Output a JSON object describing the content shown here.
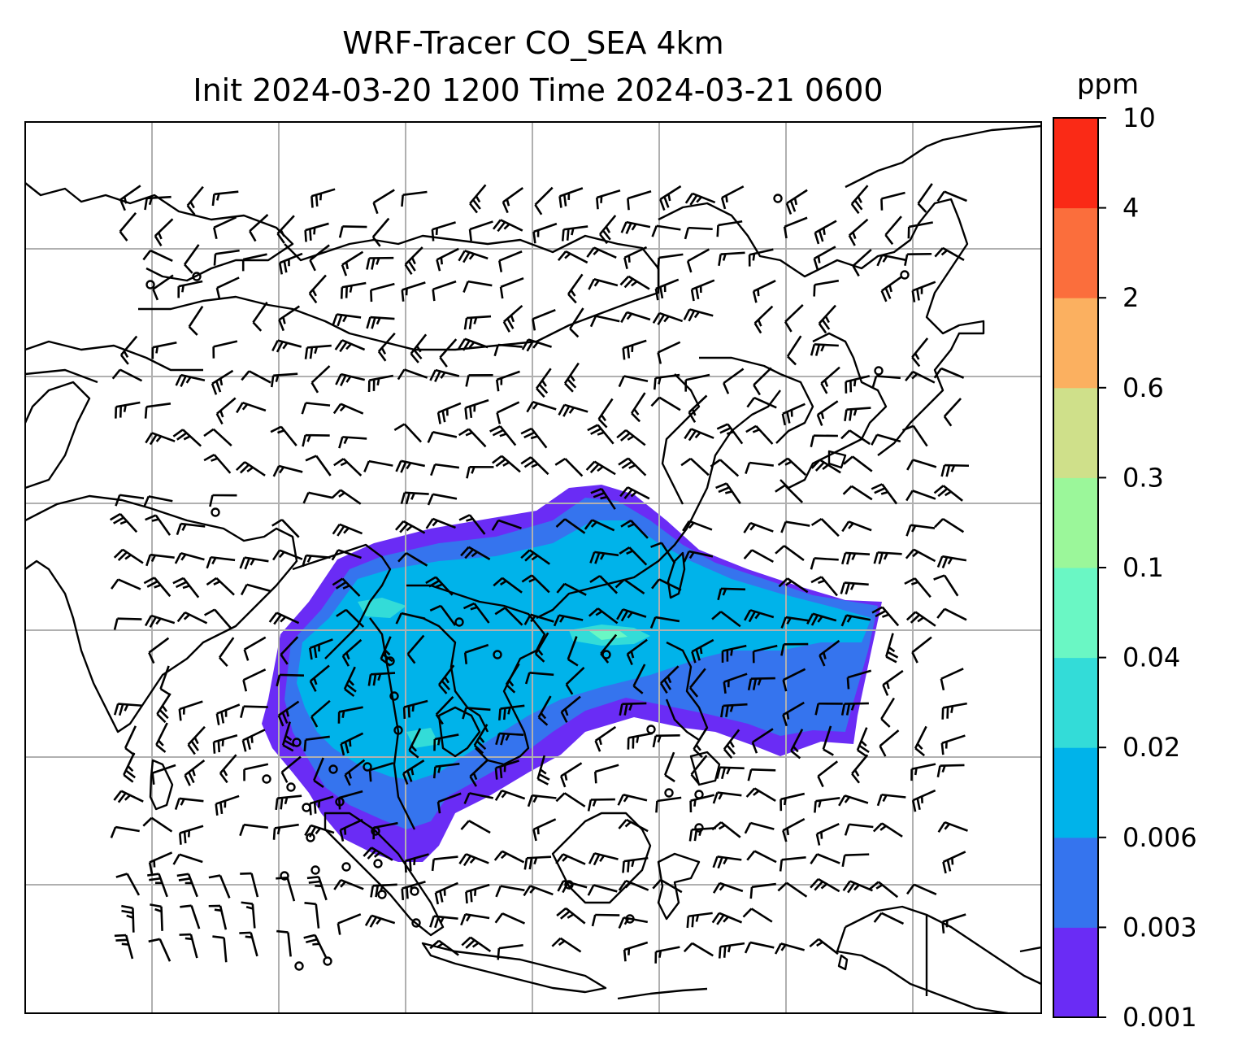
{
  "title": {
    "line1": "WRF-Tracer CO_SEA 4km",
    "line2": "Init 2024-03-20 1200 Time 2024-03-21 0600"
  },
  "colorbar": {
    "unit": "ppm",
    "levels": [
      "0.001",
      "0.003",
      "0.006",
      "0.02",
      "0.04",
      "0.1",
      "0.3",
      "0.6",
      "2",
      "4",
      "10"
    ],
    "colors": [
      "#6a2cf5",
      "#3574ee",
      "#00b3ea",
      "#33dcd8",
      "#6af7c4",
      "#9bf79a",
      "#cfe08a",
      "#fbb060",
      "#fb6e3c",
      "#fa2a16"
    ]
  },
  "map": {
    "gridlines": true,
    "coastline_color": "#000000",
    "gridline_color": "#b0b0b0",
    "wind_barb_color": "#000000",
    "icons": [
      "wind-barb-icon",
      "calm-wind-circle-icon"
    ]
  }
}
